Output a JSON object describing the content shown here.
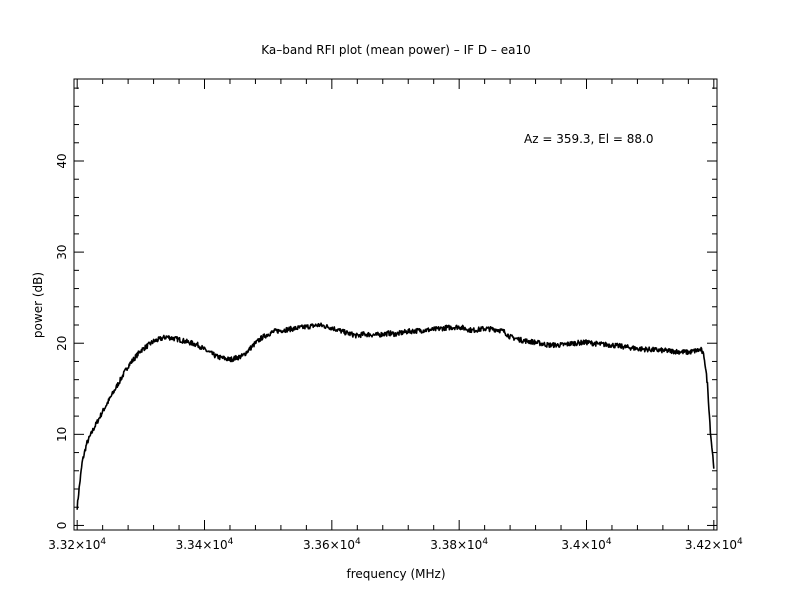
{
  "chart_data": {
    "type": "line",
    "title": "Ka–band RFI plot (mean power) – IF D – ea10",
    "xlabel": "frequency (MHz)",
    "ylabel": "power (dB)",
    "annotation": "Az = 359.3, El = 88.0",
    "xlim": [
      33195,
      34205
    ],
    "ylim": [
      -0.5,
      49
    ],
    "x_ticks": [
      {
        "value": 33200,
        "mantissa": "3.32",
        "exp": "4"
      },
      {
        "value": 33400,
        "mantissa": "3.34",
        "exp": "4"
      },
      {
        "value": 33600,
        "mantissa": "3.36",
        "exp": "4"
      },
      {
        "value": 33800,
        "mantissa": "3.38",
        "exp": "4"
      },
      {
        "value": 34000,
        "mantissa": "3.4",
        "exp": "4"
      },
      {
        "value": 34200,
        "mantissa": "3.42",
        "exp": "4"
      }
    ],
    "y_ticks": [
      {
        "value": 0,
        "label": "0"
      },
      {
        "value": 10,
        "label": "10"
      },
      {
        "value": 20,
        "label": "20"
      },
      {
        "value": 30,
        "label": "30"
      },
      {
        "value": 40,
        "label": "40"
      }
    ],
    "grid": false,
    "color": "#000000",
    "series": [
      {
        "x": [
          33200,
          33203,
          33208,
          33215,
          33225,
          33240,
          33260,
          33280,
          33300,
          33320,
          33340,
          33360,
          33370,
          33380,
          33390,
          33400,
          33420,
          33440,
          33460,
          33480,
          33490,
          33500,
          33510,
          33520,
          33530,
          33540,
          33560,
          33580,
          33600,
          33620,
          33630,
          33640,
          33650,
          33670,
          33690,
          33700,
          33720,
          33740,
          33760,
          33780,
          33800,
          33820,
          33840,
          33860,
          33870,
          33880,
          33900,
          33920,
          33940,
          33960,
          33980,
          34000,
          34020,
          34040,
          34060,
          34080,
          34100,
          34120,
          34140,
          34160,
          34180,
          34185,
          34190,
          34195,
          34200
        ],
        "y": [
          2,
          4,
          7,
          9,
          10.5,
          12.5,
          15,
          17.5,
          19.2,
          20.2,
          20.7,
          20.4,
          20.2,
          20.0,
          19.8,
          19.3,
          18.5,
          18.2,
          18.6,
          20.0,
          20.6,
          21.0,
          21.3,
          21.4,
          21.5,
          21.6,
          21.8,
          22.0,
          21.7,
          21.2,
          21.0,
          20.8,
          21.0,
          20.9,
          21.1,
          21.0,
          21.3,
          21.4,
          21.5,
          21.7,
          21.8,
          21.4,
          21.6,
          21.5,
          21.3,
          20.7,
          20.3,
          20.1,
          19.8,
          19.8,
          20.0,
          20.1,
          19.9,
          19.8,
          19.6,
          19.4,
          19.3,
          19.2,
          19.1,
          19.0,
          19.3,
          18.5,
          15.5,
          10,
          6.5
        ]
      }
    ]
  }
}
